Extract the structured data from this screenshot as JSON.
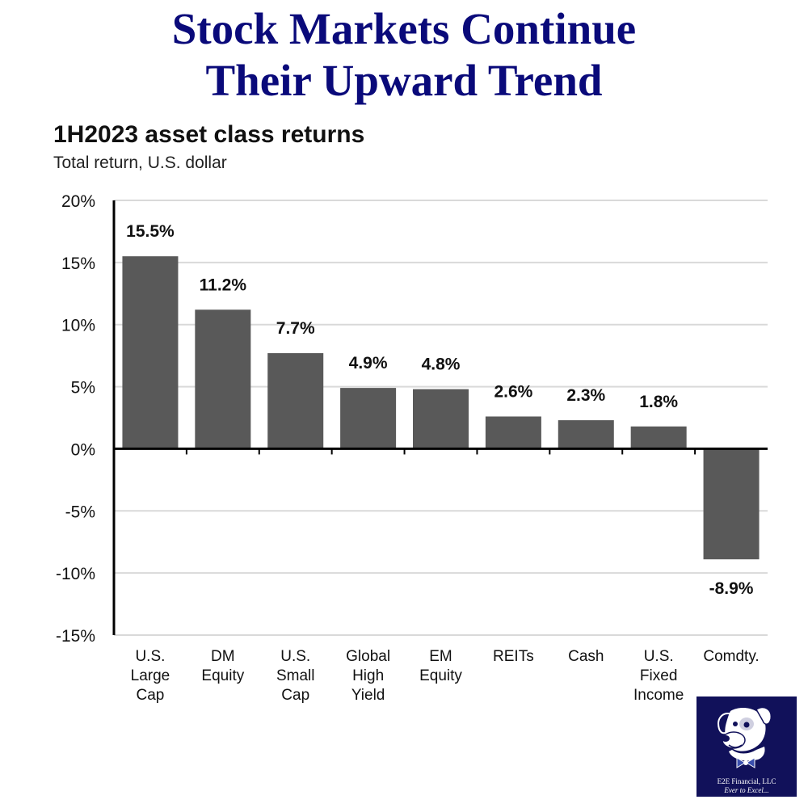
{
  "headline": {
    "line1": "Stock Markets Continue",
    "line2": "Their Upward Trend"
  },
  "chart_data": {
    "type": "bar",
    "title": "1H2023 asset class returns",
    "subtitle": "Total return, U.S. dollar",
    "xlabel": "",
    "ylabel": "",
    "categories": [
      [
        "U.S.",
        "Large",
        "Cap"
      ],
      [
        "DM",
        "Equity"
      ],
      [
        "U.S.",
        "Small",
        "Cap"
      ],
      [
        "Global",
        "High",
        "Yield"
      ],
      [
        "EM",
        "Equity"
      ],
      [
        "REITs"
      ],
      [
        "Cash"
      ],
      [
        "U.S.",
        "Fixed",
        "Income"
      ],
      [
        "Comdty."
      ]
    ],
    "values": [
      15.5,
      11.2,
      7.7,
      4.9,
      4.8,
      2.6,
      2.3,
      1.8,
      -8.9
    ],
    "data_labels": [
      "15.5%",
      "11.2%",
      "7.7%",
      "4.9%",
      "4.8%",
      "2.6%",
      "2.3%",
      "1.8%",
      "-8.9%"
    ],
    "ylim": [
      -15,
      20
    ],
    "yticks": [
      20,
      15,
      10,
      5,
      0,
      -5,
      -10,
      -15
    ],
    "ytick_labels": [
      "20%",
      "15%",
      "10%",
      "5%",
      "0%",
      "-5%",
      "-10%",
      "-15%"
    ],
    "grid": true,
    "colors": {
      "bar": "#595959",
      "grid": "#d9d9d9",
      "axis": "#000000"
    }
  },
  "logo": {
    "name": "E2E Financial, LLC",
    "tagline": "Ever to Excel..."
  },
  "colors": {
    "headline": "#0a0a7a",
    "logo_background": "#11115a"
  }
}
